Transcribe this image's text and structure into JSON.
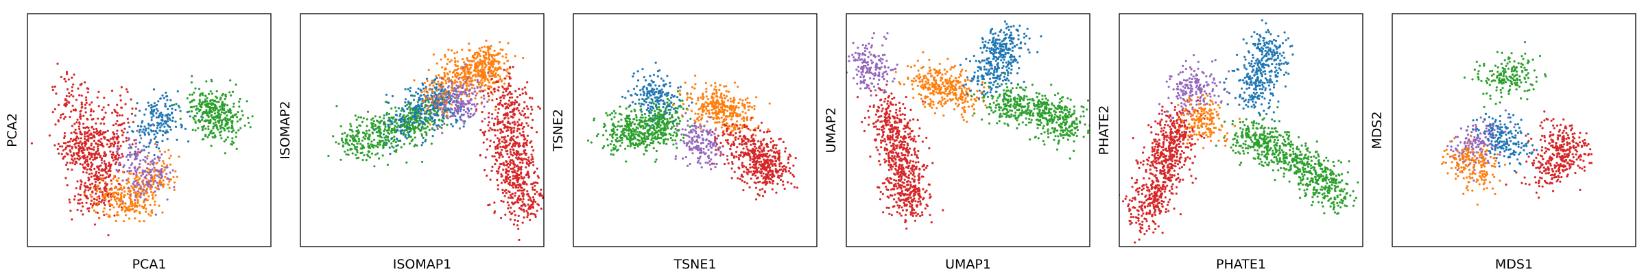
{
  "chart_data": [
    {
      "type": "scatter",
      "xlabel": "PCA1",
      "ylabel": "PCA2",
      "xticks": false,
      "yticks": false,
      "grid": false,
      "legend": "none",
      "series": [
        {
          "color": "#d62728",
          "clusters": [
            {
              "x": [
                0.22
              ],
              "y": [
                0.42
              ]
            },
            {
              "x": [
                0.15,
                0.32,
                0.27,
                0.38
              ],
              "y": [
                0.7,
                0.4,
                0.18,
                0.62
              ]
            }
          ]
        },
        {
          "color": "#ff7f0e",
          "clusters": [
            {
              "x": [
                0.33,
                0.44,
                0.56
              ],
              "y": [
                0.24,
                0.18,
                0.35
              ]
            }
          ]
        },
        {
          "color": "#9467bd",
          "clusters": [
            {
              "x": [
                0.42,
                0.52
              ],
              "y": [
                0.42,
                0.25
              ]
            }
          ]
        },
        {
          "color": "#1f77b4",
          "clusters": [
            {
              "x": [
                0.58,
                0.5
              ],
              "y": [
                0.6,
                0.48
              ]
            }
          ]
        },
        {
          "color": "#2ca02c",
          "clusters": [
            {
              "x": [
                0.7,
                0.82,
                0.75
              ],
              "y": [
                0.58,
                0.52,
                0.65
              ]
            }
          ]
        }
      ]
    },
    {
      "type": "scatter",
      "xlabel": "ISOMAP1",
      "ylabel": "ISOMAP2",
      "xticks": false,
      "yticks": false,
      "grid": false,
      "legend": "none",
      "series": [
        {
          "color": "#2ca02c",
          "clusters": [
            {
              "x": [
                0.18,
                0.32,
                0.45,
                0.55
              ],
              "y": [
                0.45,
                0.48,
                0.52,
                0.58
              ]
            }
          ]
        },
        {
          "color": "#1f77b4",
          "clusters": [
            {
              "x": [
                0.4,
                0.55,
                0.6
              ],
              "y": [
                0.5,
                0.65,
                0.58
              ]
            }
          ]
        },
        {
          "color": "#ff7f0e",
          "clusters": [
            {
              "x": [
                0.55,
                0.68,
                0.78,
                0.74
              ],
              "y": [
                0.65,
                0.75,
                0.8,
                0.7
              ]
            }
          ]
        },
        {
          "color": "#9467bd",
          "clusters": [
            {
              "x": [
                0.65
              ],
              "y": [
                0.62
              ]
            }
          ]
        },
        {
          "color": "#d62728",
          "clusters": [
            {
              "x": [
                0.85,
                0.88,
                0.9,
                0.92,
                0.8
              ],
              "y": [
                0.7,
                0.5,
                0.3,
                0.15,
                0.55
              ]
            }
          ]
        }
      ]
    },
    {
      "type": "scatter",
      "xlabel": "TSNE1",
      "ylabel": "TSNE2",
      "xticks": false,
      "yticks": false,
      "grid": false,
      "legend": "none",
      "series": [
        {
          "color": "#2ca02c",
          "clusters": [
            {
              "x": [
                0.2,
                0.32,
                0.4,
                0.12
              ],
              "y": [
                0.48,
                0.5,
                0.55,
                0.47
              ]
            }
          ]
        },
        {
          "color": "#1f77b4",
          "clusters": [
            {
              "x": [
                0.3,
                0.38
              ],
              "y": [
                0.68,
                0.62
              ]
            }
          ]
        },
        {
          "color": "#ff7f0e",
          "clusters": [
            {
              "x": [
                0.52,
                0.62,
                0.7
              ],
              "y": [
                0.62,
                0.6,
                0.55
              ]
            }
          ]
        },
        {
          "color": "#9467bd",
          "clusters": [
            {
              "x": [
                0.5,
                0.55
              ],
              "y": [
                0.47,
                0.42
              ]
            }
          ]
        },
        {
          "color": "#d62728",
          "clusters": [
            {
              "x": [
                0.75,
                0.82,
                0.78,
                0.65
              ],
              "y": [
                0.45,
                0.35,
                0.3,
                0.48
              ]
            }
          ]
        }
      ]
    },
    {
      "type": "scatter",
      "xlabel": "UMAP1",
      "ylabel": "UMAP2",
      "xticks": false,
      "yticks": false,
      "grid": false,
      "legend": "none",
      "series": [
        {
          "color": "#9467bd",
          "clusters": [
            {
              "x": [
                0.08,
                0.12
              ],
              "y": [
                0.82,
                0.72
              ]
            }
          ]
        },
        {
          "color": "#d62728",
          "clusters": [
            {
              "x": [
                0.18,
                0.22,
                0.24,
                0.26,
                0.14
              ],
              "y": [
                0.6,
                0.45,
                0.3,
                0.15,
                0.65
              ]
            }
          ]
        },
        {
          "color": "#ff7f0e",
          "clusters": [
            {
              "x": [
                0.3,
                0.4,
                0.5
              ],
              "y": [
                0.72,
                0.68,
                0.64
              ]
            }
          ]
        },
        {
          "color": "#1f77b4",
          "clusters": [
            {
              "x": [
                0.58,
                0.62,
                0.66
              ],
              "y": [
                0.7,
                0.82,
                0.9
              ]
            }
          ]
        },
        {
          "color": "#2ca02c",
          "clusters": [
            {
              "x": [
                0.62,
                0.74,
                0.86,
                0.93
              ],
              "y": [
                0.62,
                0.6,
                0.56,
                0.5
              ]
            }
          ]
        }
      ]
    },
    {
      "type": "scatter",
      "xlabel": "PHATE1",
      "ylabel": "PHATE2",
      "xticks": false,
      "yticks": false,
      "grid": false,
      "legend": "none",
      "series": [
        {
          "color": "#d62728",
          "clusters": [
            {
              "x": [
                0.1,
                0.16,
                0.22,
                0.25,
                0.06
              ],
              "y": [
                0.12,
                0.28,
                0.42,
                0.55,
                0.05
              ]
            }
          ]
        },
        {
          "color": "#9467bd",
          "clusters": [
            {
              "x": [
                0.3
              ],
              "y": [
                0.68
              ]
            }
          ]
        },
        {
          "color": "#ff7f0e",
          "clusters": [
            {
              "x": [
                0.3,
                0.38
              ],
              "y": [
                0.56,
                0.52
              ]
            }
          ]
        },
        {
          "color": "#1f77b4",
          "clusters": [
            {
              "x": [
                0.55,
                0.58,
                0.62
              ],
              "y": [
                0.6,
                0.75,
                0.88
              ]
            }
          ]
        },
        {
          "color": "#2ca02c",
          "clusters": [
            {
              "x": [
                0.5,
                0.6,
                0.72,
                0.82,
                0.92
              ],
              "y": [
                0.48,
                0.44,
                0.38,
                0.3,
                0.2
              ]
            }
          ]
        }
      ]
    },
    {
      "type": "scatter",
      "xlabel": "MDS1",
      "ylabel": "MDS2",
      "xticks": false,
      "yticks": false,
      "grid": false,
      "legend": "none",
      "series": [
        {
          "color": "#9467bd",
          "clusters": [
            {
              "x": [
                0.3,
                0.4
              ],
              "y": [
                0.4,
                0.5
              ]
            }
          ]
        },
        {
          "color": "#1f77b4",
          "clusters": [
            {
              "x": [
                0.4,
                0.5
              ],
              "y": [
                0.5,
                0.42
              ]
            }
          ]
        },
        {
          "color": "#ff7f0e",
          "clusters": [
            {
              "x": [
                0.28,
                0.38
              ],
              "y": [
                0.4,
                0.3
              ]
            }
          ]
        },
        {
          "color": "#2ca02c",
          "clusters": [
            {
              "x": [
                0.4,
                0.55
              ],
              "y": [
                0.7,
                0.75
              ]
            }
          ]
        },
        {
          "color": "#d62728",
          "clusters": [
            {
              "x": [
                0.65,
                0.75,
                0.6
              ],
              "y": [
                0.5,
                0.4,
                0.3
              ]
            }
          ]
        }
      ]
    }
  ]
}
